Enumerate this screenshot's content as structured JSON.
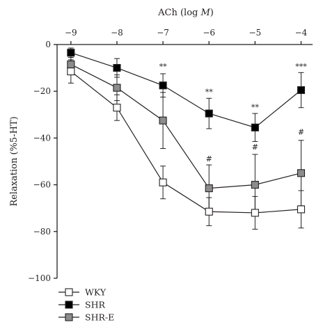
{
  "chart_data": {
    "type": "line",
    "xlabel_prefix": "ACh (log ",
    "xlabel_italic": "M",
    "xlabel_suffix": ")",
    "ylabel": "Relaxation (%5-HT)",
    "x": [
      -9,
      -8,
      -7,
      -6,
      -5,
      -4
    ],
    "x_tick_labels": [
      "−9",
      "−8",
      "−7",
      "−6",
      "−5",
      "−4"
    ],
    "xlim": [
      -9.3,
      -3.75
    ],
    "y_ticks": [
      0,
      -20,
      -40,
      -60,
      -80,
      -100
    ],
    "y_tick_labels": [
      "0",
      "−20",
      "−40",
      "−60",
      "−80",
      "−100"
    ],
    "ylim": [
      -100,
      0
    ],
    "x_axis_position": "top",
    "grid": false,
    "legend_position": "bottom-left",
    "series": [
      {
        "name": "WKY",
        "marker": "square-open",
        "fill": "#ffffff",
        "values": [
          -11.5,
          -27,
          -59,
          -71.5,
          -72,
          -70.5
        ],
        "error": [
          5,
          5.5,
          7,
          6,
          7,
          8
        ]
      },
      {
        "name": "SHR",
        "marker": "square-filled",
        "fill": "#000000",
        "values": [
          -3.5,
          -10,
          -17.5,
          -29.5,
          -35.5,
          -19.5
        ],
        "error": [
          2,
          4,
          5,
          6.5,
          6,
          7.5
        ]
      },
      {
        "name": "SHR-E",
        "marker": "square-gray",
        "fill": "#8c8c8c",
        "values": [
          -8.5,
          -18.5,
          -32.5,
          -61.5,
          -60,
          -55
        ],
        "error": [
          3,
          5.5,
          12,
          10,
          13,
          14
        ]
      }
    ],
    "annotations": [
      {
        "x": -7,
        "y": -10.5,
        "text": "**"
      },
      {
        "x": -6,
        "y": -21.5,
        "text": "**"
      },
      {
        "x": -5,
        "y": -28,
        "text": "**"
      },
      {
        "x": -4,
        "y": -10.5,
        "text": "***"
      },
      {
        "x": -6,
        "y": -50,
        "text": "#"
      },
      {
        "x": -5,
        "y": -45,
        "text": "#"
      },
      {
        "x": -4,
        "y": -38.5,
        "text": "#"
      }
    ]
  }
}
